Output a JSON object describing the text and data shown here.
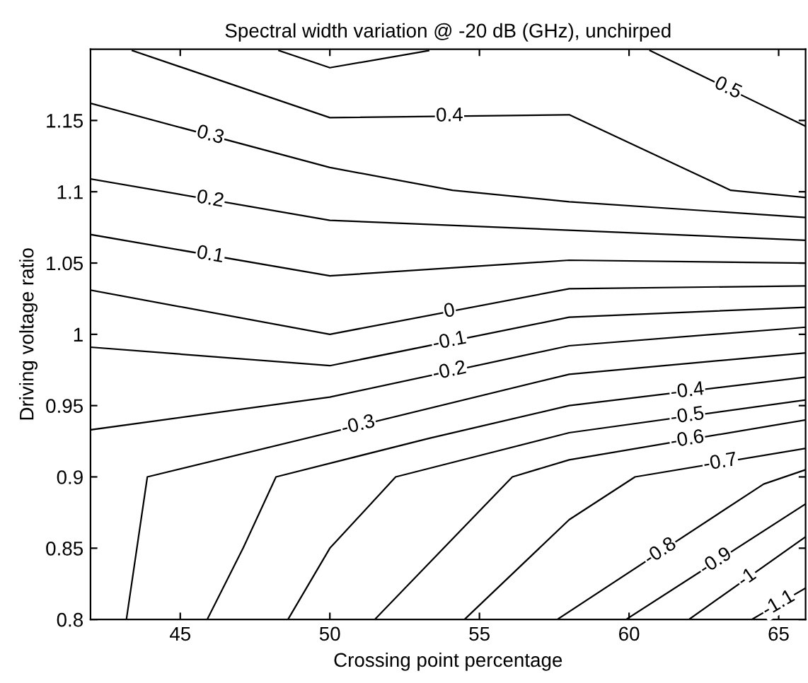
{
  "chart_data": {
    "type": "line",
    "title": "Spectral width variation @ -20 dB (GHz), unchirped",
    "xlabel": "Crossing point percentage",
    "ylabel": "Driving voltage ratio",
    "xlim": [
      42,
      65.9
    ],
    "ylim": [
      0.8,
      1.2
    ],
    "xticks": [
      45,
      50,
      55,
      60,
      65
    ],
    "yticks": [
      0.8,
      0.85,
      0.9,
      0.95,
      1,
      1.05,
      1.1,
      1.15
    ],
    "grid": false,
    "legend": false,
    "marker": "none",
    "line_style": "solid",
    "series": [
      {
        "name": "0.5",
        "color": "#000000",
        "x": [
          48.3,
          50,
          53.3,
          57,
          60.7,
          65.9
        ],
        "values": [
          1.199,
          1.187,
          1.199,
          null,
          1.199,
          1.146
        ]
      },
      {
        "name": "0.4",
        "color": "#000000",
        "x": [
          43.4,
          50,
          58,
          63.4,
          65.9
        ],
        "values": [
          1.199,
          1.152,
          1.154,
          1.101,
          1.096
        ]
      },
      {
        "name": "0.3",
        "color": "#000000",
        "x": [
          42,
          50,
          54.1,
          58,
          65.9
        ],
        "values": [
          1.162,
          1.117,
          1.101,
          1.093,
          1.082
        ]
      },
      {
        "name": "0.2",
        "color": "#000000",
        "x": [
          42,
          50,
          58,
          65.9
        ],
        "values": [
          1.109,
          1.08,
          1.073,
          1.066
        ]
      },
      {
        "name": "0.1",
        "color": "#000000",
        "x": [
          42,
          50,
          58,
          65.9
        ],
        "values": [
          1.07,
          1.041,
          1.052,
          1.05
        ]
      },
      {
        "name": "0",
        "color": "#000000",
        "x": [
          42,
          50,
          58,
          65.9
        ],
        "values": [
          1.031,
          1.0,
          1.032,
          1.034
        ]
      },
      {
        "name": "-0.1",
        "color": "#000000",
        "x": [
          42,
          50,
          58,
          65.9
        ],
        "values": [
          0.991,
          0.978,
          1.012,
          1.019
        ]
      },
      {
        "name": "-0.2",
        "color": "#000000",
        "x": [
          42,
          50,
          58,
          65.9
        ],
        "values": [
          0.933,
          0.956,
          0.992,
          1.005
        ]
      },
      {
        "name": "-0.3",
        "color": "#000000",
        "x": [
          43.2,
          43.9,
          58,
          65.9
        ],
        "values": [
          0.8,
          0.9,
          0.972,
          0.987
        ]
      },
      {
        "name": "-0.4",
        "color": "#000000",
        "x": [
          45.9,
          47.1,
          48.2,
          53.3,
          58,
          65.9
        ],
        "values": [
          0.8,
          0.85,
          0.9,
          0.927,
          0.95,
          0.97
        ]
      },
      {
        "name": "-0.5",
        "color": "#000000",
        "x": [
          48.6,
          50,
          52.2,
          58,
          65.9
        ],
        "values": [
          0.8,
          0.85,
          0.9,
          0.931,
          0.954
        ]
      },
      {
        "name": "-0.6",
        "color": "#000000",
        "x": [
          51.5,
          56.1,
          58,
          65.9
        ],
        "values": [
          0.8,
          0.9,
          0.912,
          0.94
        ]
      },
      {
        "name": "-0.7",
        "color": "#000000",
        "x": [
          54.5,
          58,
          60.2,
          65.9
        ],
        "values": [
          0.8,
          0.87,
          0.9,
          0.92
        ]
      },
      {
        "name": "-0.8",
        "color": "#000000",
        "x": [
          57.6,
          64.5,
          65.9
        ],
        "values": [
          0.8,
          0.895,
          0.905
        ]
      },
      {
        "name": "-0.9",
        "color": "#000000",
        "x": [
          59.9,
          65.9
        ],
        "values": [
          0.8,
          0.881
        ]
      },
      {
        "name": "-1",
        "color": "#000000",
        "x": [
          62,
          65.9
        ],
        "values": [
          0.8,
          0.858
        ]
      },
      {
        "name": "-1.1",
        "color": "#000000",
        "x": [
          64.1,
          65.9
        ],
        "values": [
          0.8,
          0.822
        ]
      }
    ]
  }
}
